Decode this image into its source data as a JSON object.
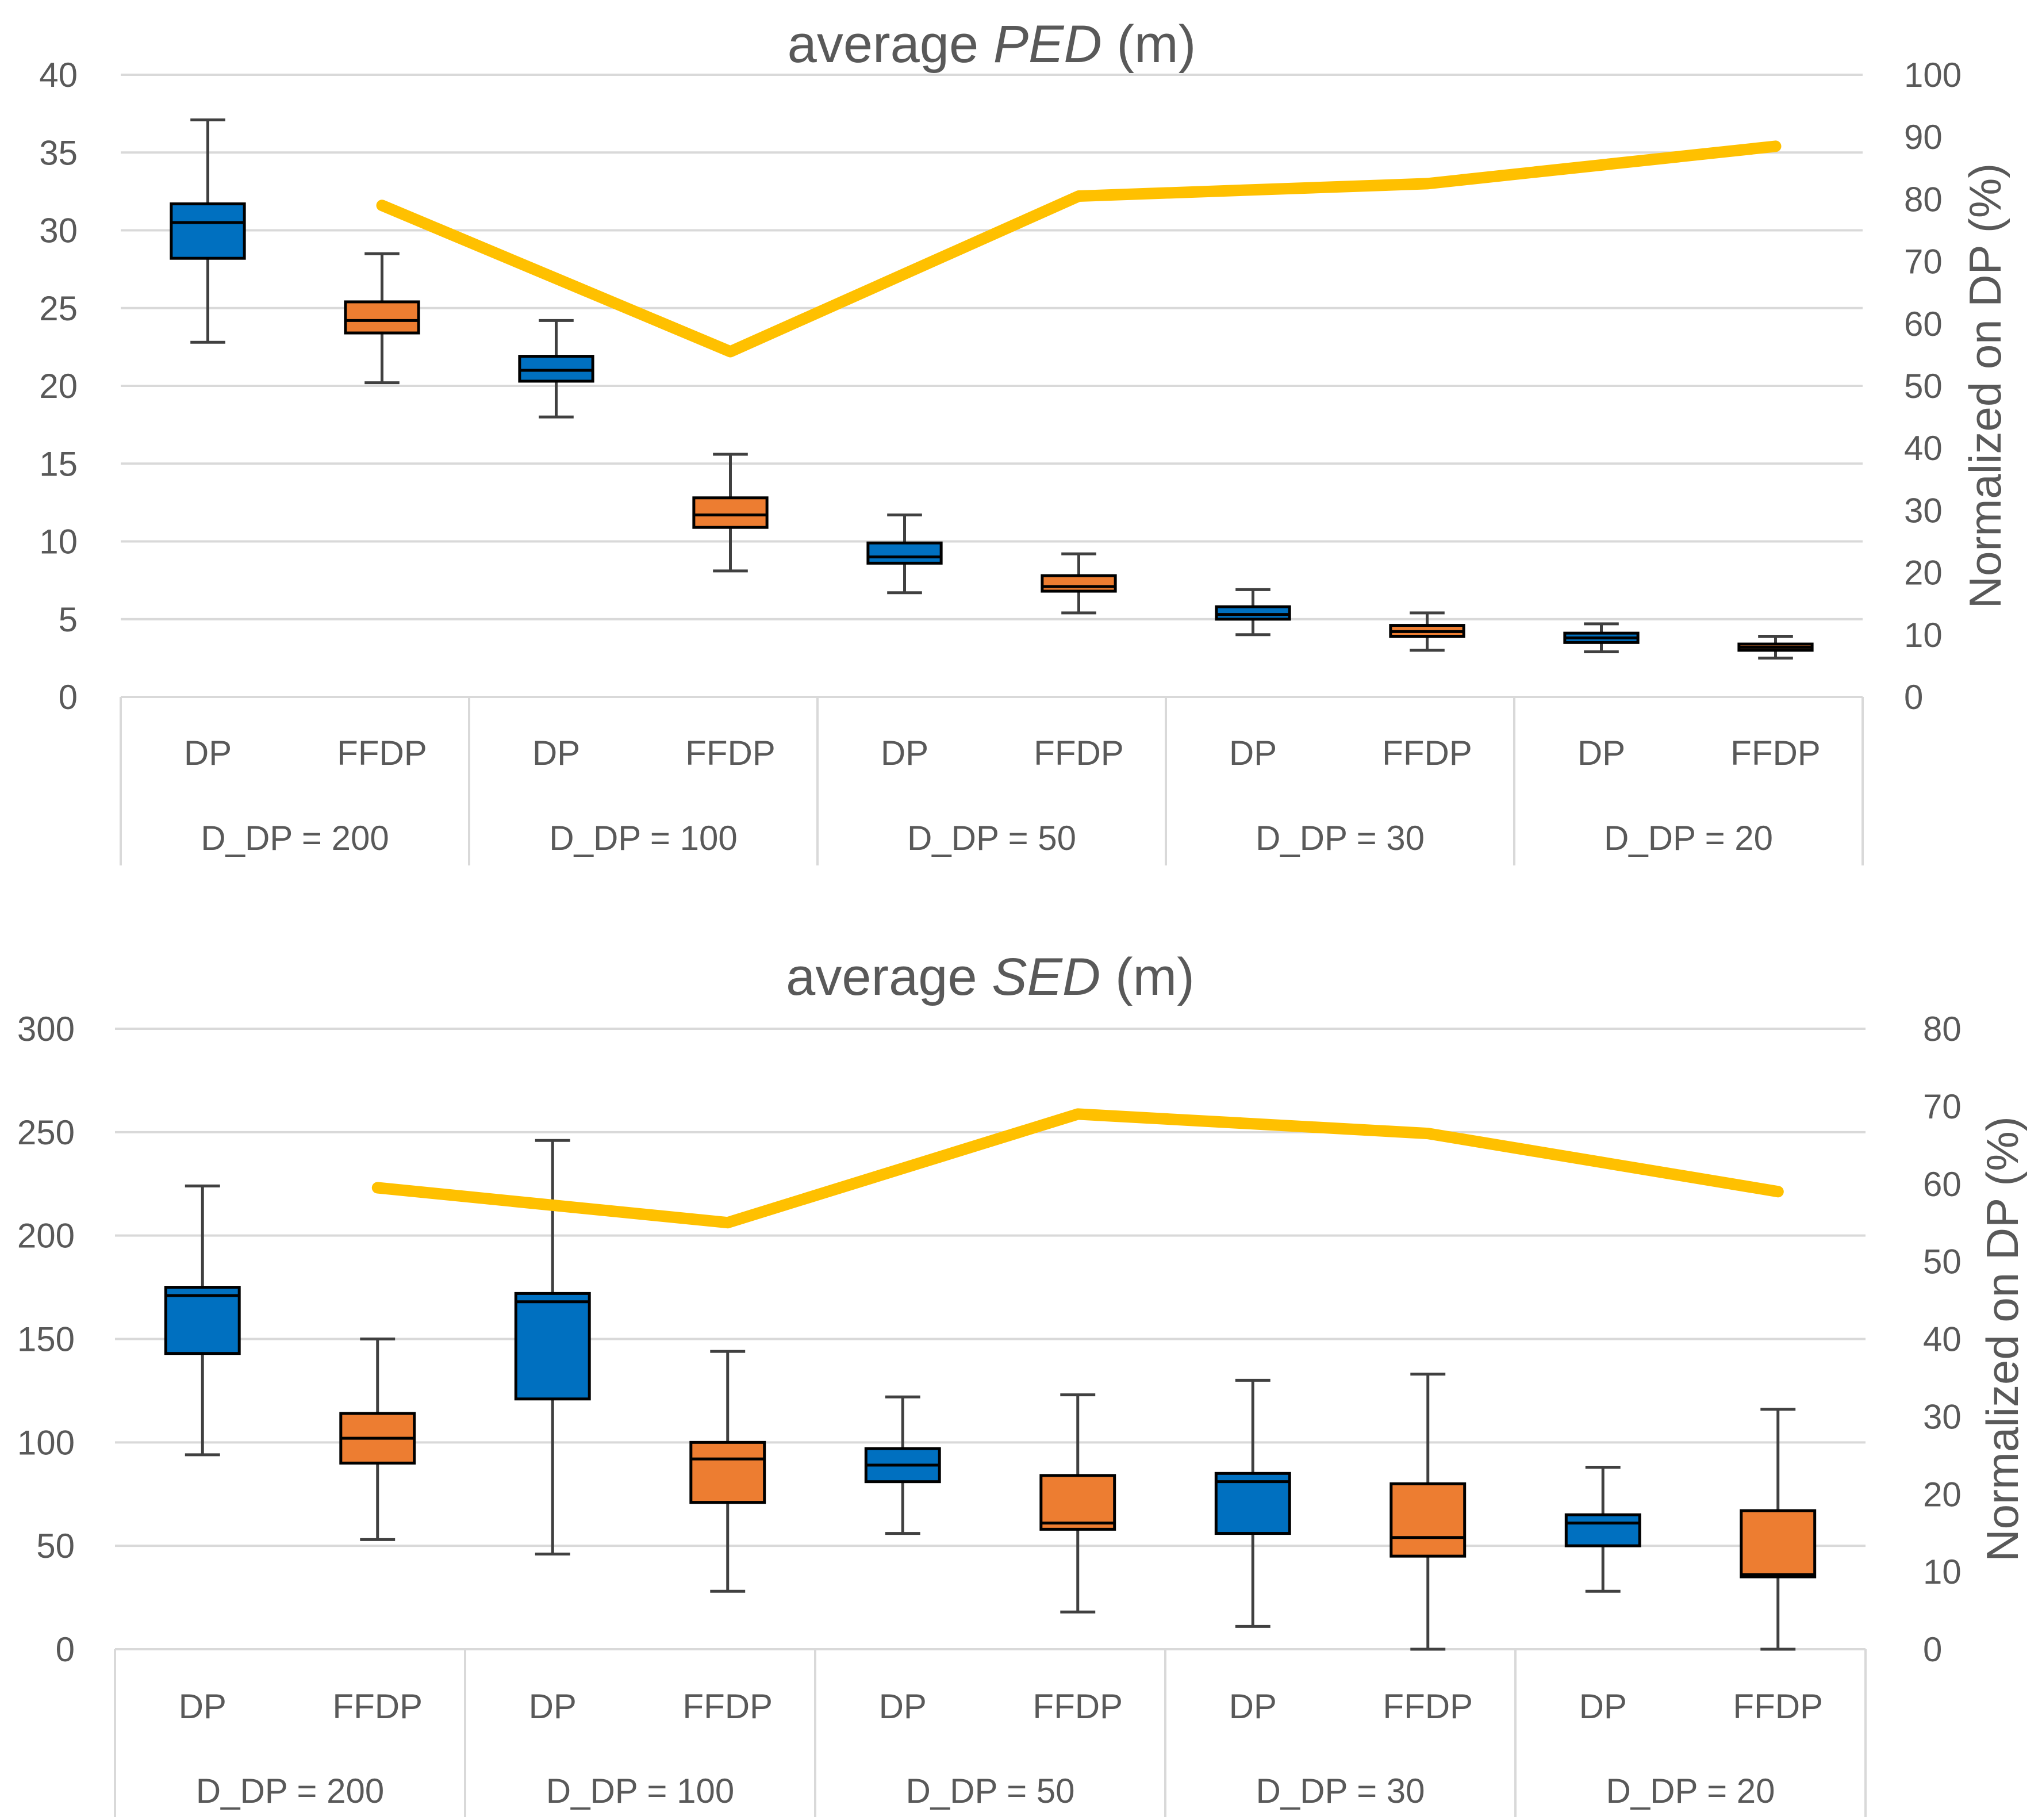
{
  "colors": {
    "dp_fill": "#0070C0",
    "ffdp_fill": "#ED7D31",
    "line": "#FFC000",
    "grid": "#D9D9D9",
    "whisker": "#404040",
    "text": "#595959"
  },
  "chart_data": [
    {
      "type": "box",
      "title_prefix": "average ",
      "title_italic": "PED",
      "title_suffix": " (m)",
      "left_axis": {
        "min": 0,
        "max": 40,
        "step": 5,
        "ticks": [
          "0",
          "5",
          "10",
          "15",
          "20",
          "25",
          "30",
          "35",
          "40"
        ]
      },
      "right_axis": {
        "label": "Normalized on DP (%)",
        "min": 0,
        "max": 100,
        "step": 10,
        "ticks": [
          "0",
          "10",
          "20",
          "30",
          "40",
          "50",
          "60",
          "70",
          "80",
          "90",
          "100"
        ]
      },
      "groups": [
        {
          "label": "D_DP = 200",
          "methods": [
            {
              "name": "DP",
              "min": 22.8,
              "q1": 28.2,
              "median": 30.5,
              "q3": 31.7,
              "max": 37.1
            },
            {
              "name": "FFDP",
              "min": 20.2,
              "q1": 23.4,
              "median": 24.2,
              "q3": 25.4,
              "max": 28.5
            }
          ]
        },
        {
          "label": "D_DP = 100",
          "methods": [
            {
              "name": "DP",
              "min": 18.0,
              "q1": 20.3,
              "median": 21.0,
              "q3": 21.9,
              "max": 24.2
            },
            {
              "name": "FFDP",
              "min": 8.1,
              "q1": 10.9,
              "median": 11.7,
              "q3": 12.8,
              "max": 15.6
            }
          ]
        },
        {
          "label": "D_DP = 50",
          "methods": [
            {
              "name": "DP",
              "min": 6.7,
              "q1": 8.6,
              "median": 9.0,
              "q3": 9.9,
              "max": 11.7
            },
            {
              "name": "FFDP",
              "min": 5.4,
              "q1": 6.8,
              "median": 7.1,
              "q3": 7.8,
              "max": 9.2
            }
          ]
        },
        {
          "label": "D_DP = 30",
          "methods": [
            {
              "name": "DP",
              "min": 4.0,
              "q1": 5.0,
              "median": 5.3,
              "q3": 5.8,
              "max": 6.9
            },
            {
              "name": "FFDP",
              "min": 3.0,
              "q1": 3.9,
              "median": 4.2,
              "q3": 4.6,
              "max": 5.4
            }
          ]
        },
        {
          "label": "D_DP = 20",
          "methods": [
            {
              "name": "DP",
              "min": 2.9,
              "q1": 3.5,
              "median": 3.8,
              "q3": 4.1,
              "max": 4.7
            },
            {
              "name": "FFDP",
              "min": 2.5,
              "q1": 3.0,
              "median": 3.2,
              "q3": 3.4,
              "max": 3.9
            }
          ]
        }
      ],
      "line_series": {
        "name": "Normalized on DP (%)",
        "axis": "right",
        "points": [
          {
            "slot": 1,
            "value": 79
          },
          {
            "slot": 3,
            "value": 55.5
          },
          {
            "slot": 5,
            "value": 80.5
          },
          {
            "slot": 7,
            "value": 82.5
          },
          {
            "slot": 9,
            "value": 88.5
          }
        ]
      }
    },
    {
      "type": "box",
      "title_prefix": "average ",
      "title_italic": "SED",
      "title_suffix": " (m)",
      "left_axis": {
        "min": 0,
        "max": 300,
        "step": 50,
        "ticks": [
          "0",
          "50",
          "100",
          "150",
          "200",
          "250",
          "300"
        ]
      },
      "right_axis": {
        "label": "Normalized on DP (%)",
        "min": 0,
        "max": 80,
        "step": 10,
        "ticks": [
          "0",
          "10",
          "20",
          "30",
          "40",
          "50",
          "60",
          "70",
          "80"
        ]
      },
      "groups": [
        {
          "label": "D_DP = 200",
          "methods": [
            {
              "name": "DP",
              "min": 94,
              "q1": 143,
              "median": 171,
              "q3": 175,
              "max": 224
            },
            {
              "name": "FFDP",
              "min": 53,
              "q1": 90,
              "median": 102,
              "q3": 114,
              "max": 150
            }
          ]
        },
        {
          "label": "D_DP = 100",
          "methods": [
            {
              "name": "DP",
              "min": 46,
              "q1": 121,
              "median": 168,
              "q3": 172,
              "max": 246
            },
            {
              "name": "FFDP",
              "min": 28,
              "q1": 71,
              "median": 92,
              "q3": 100,
              "max": 144
            }
          ]
        },
        {
          "label": "D_DP = 50",
          "methods": [
            {
              "name": "DP",
              "min": 56,
              "q1": 81,
              "median": 89,
              "q3": 97,
              "max": 122
            },
            {
              "name": "FFDP",
              "min": 18,
              "q1": 58,
              "median": 61,
              "q3": 84,
              "max": 123
            }
          ]
        },
        {
          "label": "D_DP = 30",
          "methods": [
            {
              "name": "DP",
              "min": 11,
              "q1": 56,
              "median": 81,
              "q3": 85,
              "max": 130
            },
            {
              "name": "FFDP",
              "min": 0,
              "q1": 45,
              "median": 54,
              "q3": 80,
              "max": 133
            }
          ]
        },
        {
          "label": "D_DP = 20",
          "methods": [
            {
              "name": "DP",
              "min": 28,
              "q1": 50,
              "median": 61,
              "q3": 65,
              "max": 88
            },
            {
              "name": "FFDP",
              "min": 0,
              "q1": 35,
              "median": 36,
              "q3": 67,
              "max": 116
            }
          ]
        }
      ],
      "line_series": {
        "name": "Normalized on DP (%)",
        "axis": "right",
        "points": [
          {
            "slot": 1,
            "value": 59.5
          },
          {
            "slot": 3,
            "value": 55
          },
          {
            "slot": 5,
            "value": 69
          },
          {
            "slot": 7,
            "value": 66.5
          },
          {
            "slot": 9,
            "value": 59
          }
        ]
      }
    }
  ]
}
